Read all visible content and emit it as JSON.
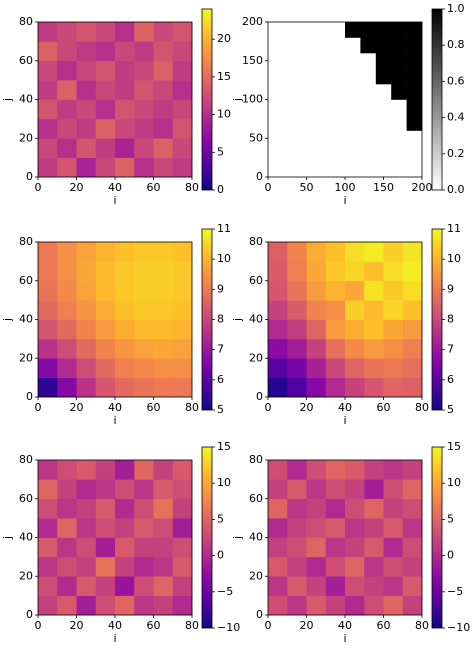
{
  "chart_data": [
    {
      "type": "heatmap",
      "colormap": "plasma",
      "xlabel": "i",
      "ylabel": "j",
      "xlim": [
        0,
        80
      ],
      "ylim": [
        0,
        80
      ],
      "xticks": [
        0,
        20,
        40,
        60,
        80
      ],
      "yticks": [
        0,
        20,
        40,
        60,
        80
      ],
      "clim": [
        0,
        24
      ],
      "cticks": [
        0,
        5,
        10,
        15,
        20
      ],
      "z": [
        [
          11,
          13,
          9,
          12,
          14,
          10,
          12,
          11
        ],
        [
          12,
          10,
          13,
          11,
          9,
          12,
          14,
          12
        ],
        [
          10,
          12,
          11,
          14,
          12,
          11,
          10,
          13
        ],
        [
          13,
          11,
          12,
          10,
          13,
          12,
          11,
          12
        ],
        [
          11,
          14,
          10,
          12,
          11,
          13,
          12,
          10
        ],
        [
          12,
          10,
          12,
          13,
          11,
          12,
          14,
          11
        ],
        [
          14,
          12,
          11,
          10,
          12,
          11,
          13,
          12
        ],
        [
          11,
          12,
          13,
          12,
          10,
          14,
          12,
          13
        ]
      ]
    },
    {
      "type": "heatmap",
      "colormap": "gray_r",
      "xlabel": "i",
      "ylabel": "j",
      "xlim": [
        0,
        200
      ],
      "ylim": [
        0,
        200
      ],
      "xticks": [
        0,
        50,
        100,
        150,
        200
      ],
      "yticks": [
        0,
        50,
        100,
        150,
        200
      ],
      "clim": [
        0,
        1
      ],
      "cticks": [
        {
          "value": 0,
          "label": "0.0"
        },
        {
          "value": 0.2,
          "label": "0.2"
        },
        {
          "value": 0.4,
          "label": "0.4"
        },
        {
          "value": 0.6,
          "label": "0.6"
        },
        {
          "value": 0.8,
          "label": "0.8"
        },
        {
          "value": 1,
          "label": "1.0"
        }
      ],
      "z": [
        [
          0,
          0,
          0,
          0,
          0,
          0,
          0,
          0,
          0,
          0
        ],
        [
          0,
          0,
          0,
          0,
          0,
          0,
          0,
          0,
          0,
          0
        ],
        [
          0,
          0,
          0,
          0,
          0,
          0,
          0,
          0,
          0,
          0
        ],
        [
          0,
          0,
          0,
          0,
          0,
          0,
          0,
          0,
          0,
          1
        ],
        [
          0,
          0,
          0,
          0,
          0,
          0,
          0,
          0,
          0,
          1
        ],
        [
          0,
          0,
          0,
          0,
          0,
          0,
          0,
          0,
          1,
          1
        ],
        [
          0,
          0,
          0,
          0,
          0,
          0,
          0,
          1,
          1,
          1
        ],
        [
          0,
          0,
          0,
          0,
          0,
          0,
          0,
          1,
          1,
          1
        ],
        [
          0,
          0,
          0,
          0,
          0,
          0,
          1,
          1,
          1,
          1
        ],
        [
          0,
          0,
          0,
          0,
          0,
          1,
          1,
          1,
          1,
          1
        ]
      ]
    },
    {
      "type": "heatmap",
      "colormap": "plasma",
      "xlabel": "i",
      "ylabel": "j",
      "xlim": [
        0,
        80
      ],
      "ylim": [
        0,
        80
      ],
      "xticks": [
        0,
        20,
        40,
        60,
        80
      ],
      "yticks": [
        0,
        20,
        40,
        60,
        80
      ],
      "clim": [
        5,
        11
      ],
      "cticks": [
        5,
        6,
        7,
        8,
        9,
        10,
        11
      ],
      "z": [
        [
          5.4,
          6.6,
          7.6,
          8.3,
          8.7,
          8.9,
          9.0,
          9.0
        ],
        [
          6.6,
          7.4,
          8.1,
          8.7,
          9.1,
          9.3,
          9.4,
          9.4
        ],
        [
          7.6,
          8.1,
          8.7,
          9.2,
          9.5,
          9.7,
          9.8,
          9.7
        ],
        [
          8.3,
          8.7,
          9.2,
          9.6,
          9.9,
          10.1,
          10.1,
          10.0
        ],
        [
          8.7,
          9.1,
          9.5,
          9.9,
          10.2,
          10.3,
          10.3,
          10.2
        ],
        [
          8.9,
          9.3,
          9.7,
          10.1,
          10.3,
          10.4,
          10.4,
          10.3
        ],
        [
          9.0,
          9.4,
          9.8,
          10.1,
          10.3,
          10.4,
          10.4,
          10.3
        ],
        [
          9.0,
          9.4,
          9.7,
          10.0,
          10.2,
          10.3,
          10.3,
          10.2
        ]
      ]
    },
    {
      "type": "heatmap",
      "colormap": "plasma",
      "xlabel": "i",
      "ylabel": "j",
      "xlim": [
        0,
        80
      ],
      "ylim": [
        0,
        80
      ],
      "xticks": [
        0,
        20,
        40,
        60,
        80
      ],
      "yticks": [
        0,
        20,
        40,
        60,
        80
      ],
      "clim": [
        5,
        11
      ],
      "cticks": [
        5,
        6,
        7,
        8,
        9,
        10,
        11
      ],
      "z": [
        [
          5.3,
          5.8,
          6.6,
          7.4,
          7.9,
          8.3,
          8.6,
          8.5
        ],
        [
          5.9,
          6.4,
          7.2,
          8.0,
          8.6,
          8.9,
          9.0,
          8.8
        ],
        [
          6.7,
          7.1,
          7.9,
          8.8,
          9.3,
          9.6,
          9.4,
          9.1
        ],
        [
          7.4,
          7.8,
          8.6,
          9.6,
          9.9,
          10.2,
          9.8,
          9.6
        ],
        [
          7.9,
          8.4,
          9.2,
          9.4,
          10.4,
          10.1,
          10.5,
          10.2
        ],
        [
          8.3,
          8.9,
          9.6,
          10.0,
          9.8,
          10.7,
          10.3,
          10.6
        ],
        [
          8.4,
          9.1,
          9.8,
          10.3,
          10.5,
          10.2,
          10.6,
          10.8
        ],
        [
          8.5,
          9.2,
          9.9,
          10.2,
          10.6,
          10.8,
          10.4,
          10.7
        ]
      ]
    },
    {
      "type": "heatmap",
      "colormap": "plasma",
      "xlabel": "i",
      "ylabel": "j",
      "xlim": [
        0,
        80
      ],
      "ylim": [
        0,
        80
      ],
      "xticks": [
        0,
        20,
        40,
        60,
        80
      ],
      "yticks": [
        0,
        20,
        40,
        60,
        80
      ],
      "clim": [
        -10,
        15
      ],
      "cticks": [
        {
          "value": -10,
          "label": "−10"
        },
        {
          "value": -5,
          "label": "−5"
        },
        0,
        5,
        10,
        15
      ],
      "z": [
        [
          2,
          4,
          -1,
          3,
          5,
          1,
          2,
          0
        ],
        [
          3,
          0,
          4,
          2,
          -2,
          3,
          5,
          2
        ],
        [
          1,
          3,
          2,
          6,
          2,
          0,
          1,
          4
        ],
        [
          4,
          1,
          3,
          -1,
          4,
          2,
          2,
          3
        ],
        [
          0,
          5,
          1,
          3,
          2,
          4,
          3,
          -1
        ],
        [
          3,
          1,
          2,
          4,
          0,
          3,
          6,
          2
        ],
        [
          5,
          2,
          0,
          1,
          3,
          1,
          4,
          3
        ],
        [
          1,
          3,
          4,
          2,
          -1,
          5,
          2,
          4
        ]
      ]
    },
    {
      "type": "heatmap",
      "colormap": "plasma",
      "xlabel": "i",
      "ylabel": "j",
      "xlim": [
        0,
        80
      ],
      "ylim": [
        0,
        80
      ],
      "xticks": [
        0,
        20,
        40,
        60,
        80
      ],
      "yticks": [
        0,
        20,
        40,
        60,
        80
      ],
      "clim": [
        -10,
        15
      ],
      "cticks": [
        {
          "value": -10,
          "label": "−10"
        },
        {
          "value": -5,
          "label": "−5"
        },
        0,
        5,
        10,
        15
      ],
      "z": [
        [
          3,
          1,
          4,
          2,
          0,
          3,
          5,
          2
        ],
        [
          1,
          4,
          2,
          -1,
          3,
          2,
          1,
          4
        ],
        [
          4,
          2,
          0,
          3,
          5,
          1,
          3,
          2
        ],
        [
          2,
          3,
          5,
          1,
          2,
          4,
          0,
          3
        ],
        [
          0,
          2,
          3,
          4,
          1,
          2,
          4,
          1
        ],
        [
          5,
          1,
          2,
          0,
          3,
          5,
          2,
          3
        ],
        [
          2,
          4,
          1,
          3,
          2,
          -1,
          3,
          5
        ],
        [
          3,
          0,
          3,
          5,
          4,
          2,
          1,
          2
        ]
      ]
    }
  ]
}
